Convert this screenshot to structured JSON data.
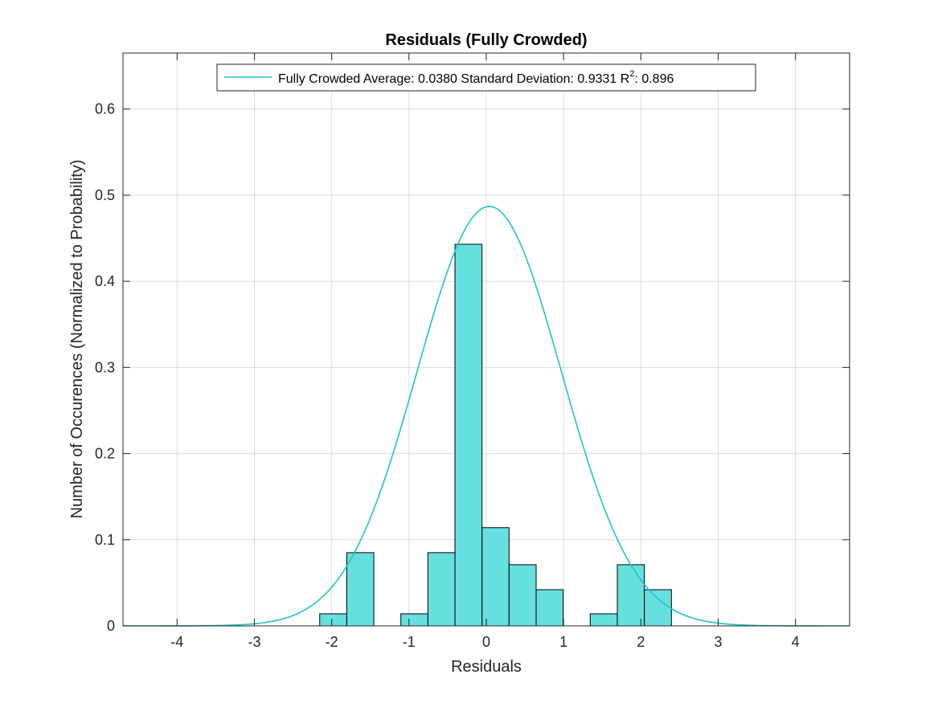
{
  "chart_data": {
    "type": "bar",
    "title": "Residuals (Fully Crowded)",
    "xlabel": "Residuals",
    "ylabel": "Number of Occurences (Normalized to Probability)",
    "xlim": [
      -4.7,
      4.7
    ],
    "ylim": [
      0,
      0.665
    ],
    "grid": true,
    "xticks": [
      -4,
      -3,
      -2,
      -1,
      0,
      1,
      2,
      3,
      4
    ],
    "xtick_labels": [
      "-4",
      "-3",
      "-2",
      "-1",
      "0",
      "1",
      "2",
      "3",
      "4"
    ],
    "yticks": [
      0,
      0.1,
      0.2,
      0.3,
      0.4,
      0.5,
      0.6
    ],
    "ytick_labels": [
      "0",
      "0.1",
      "0.2",
      "0.3",
      "0.4",
      "0.5",
      "0.6"
    ],
    "bin_width": 0.35,
    "histogram": {
      "bin_centers": [
        -1.98,
        -1.63,
        -1.28,
        -0.93,
        -0.58,
        -0.23,
        0.12,
        0.47,
        0.82,
        1.17,
        1.52,
        1.87,
        2.22
      ],
      "values": [
        0.014,
        0.085,
        0,
        0.014,
        0.085,
        0.443,
        0.114,
        0.071,
        0.042,
        0,
        0.014,
        0.071,
        0.042
      ],
      "color": "#66dfdf",
      "edge_color": "#000000"
    },
    "fit_curve": {
      "type": "normal",
      "mean": 0.038,
      "std": 0.9331,
      "peak": 0.487,
      "color": "#1fc6c6"
    },
    "legend": {
      "position": "top",
      "text_main": "Fully Crowded Average: 0.0380 Standard Deviation: 0.9331 R",
      "superscript": "2",
      "text_tail": ": 0.896"
    }
  }
}
